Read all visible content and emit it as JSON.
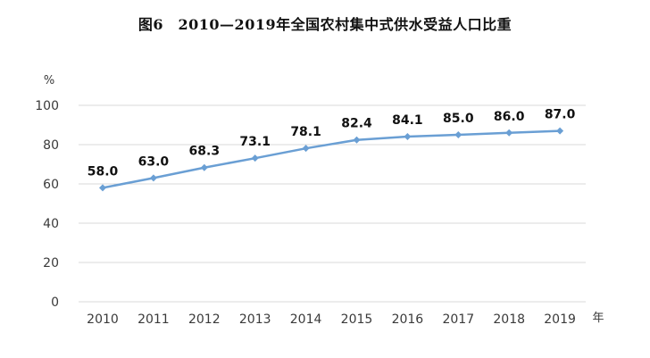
{
  "chart_data": {
    "type": "line",
    "title": "图6　2010—2019年全国农村集中式供水受益人口比重",
    "ylabel": "%",
    "xlabel": "年",
    "x": [
      "2010",
      "2011",
      "2012",
      "2013",
      "2014",
      "2015",
      "2016",
      "2017",
      "2018",
      "2019"
    ],
    "series": [
      {
        "values": [
          58.0,
          63.0,
          68.3,
          73.1,
          78.1,
          82.4,
          84.1,
          85.0,
          86.0,
          87.0
        ],
        "labels": [
          "58.0",
          "63.0",
          "68.3",
          "73.1",
          "78.1",
          "82.4",
          "84.1",
          "85.0",
          "86.0",
          "87.0"
        ]
      }
    ],
    "ylim": [
      0,
      100
    ],
    "yticks": [
      "0",
      "20",
      "40",
      "60",
      "80",
      "100"
    ],
    "grid": true,
    "line_color": "#6a9fd4",
    "grid_color": "#d9d9d9"
  }
}
